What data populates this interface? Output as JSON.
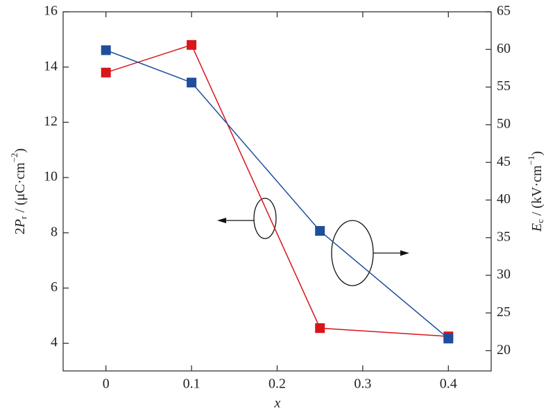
{
  "chart_data": {
    "type": "line",
    "xlabel": "x",
    "ylabel": [
      "2",
      "P",
      "r",
      " / (μC·cm",
      "−2",
      ")"
    ],
    "y2label": [
      "E",
      "c",
      " / (kV·cm",
      "−1",
      ")"
    ],
    "xlim": [
      -0.05,
      0.45
    ],
    "xticks": [
      0,
      0.1,
      0.2,
      0.3,
      0.4
    ],
    "ylim": [
      3,
      16
    ],
    "yticks": [
      4,
      6,
      8,
      10,
      12,
      14,
      16
    ],
    "y2lim": [
      17.3,
      65
    ],
    "y2ticks": [
      20,
      25,
      30,
      35,
      40,
      45,
      50,
      55,
      60,
      65
    ],
    "series": [
      {
        "color": "#d9141b",
        "x": [
          0,
          0.1,
          0.25,
          0.4
        ],
        "values": [
          13.8,
          14.8,
          4.55,
          4.25
        ]
      },
      {
        "color": "#1f4e9c",
        "axis": "y2",
        "x": [
          0,
          0.1,
          0.25,
          0.4
        ],
        "values": [
          59.9,
          55.6,
          35.9,
          21.6
        ]
      }
    ]
  }
}
